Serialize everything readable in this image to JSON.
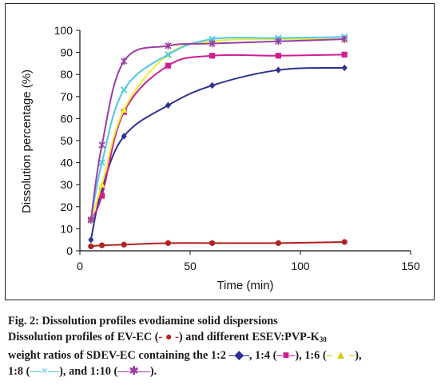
{
  "chart_data": {
    "type": "line",
    "xlabel": "Time (min)",
    "ylabel": "Dissolution percentage (%)",
    "xlim": [
      0,
      150
    ],
    "ylim": [
      0,
      100
    ],
    "xticks": [
      "0",
      "50",
      "100",
      "150"
    ],
    "yticks": [
      "0",
      "10",
      "20",
      "30",
      "40",
      "50",
      "60",
      "70",
      "80",
      "90",
      "100"
    ],
    "grid": false,
    "series": [
      {
        "key": "ev_ec",
        "color": "#b22222",
        "marker": "circle",
        "x": [
          5,
          10,
          20,
          40,
          60,
          90,
          120
        ],
        "y": [
          2,
          2.5,
          2.8,
          3.5,
          3.5,
          3.5,
          4
        ]
      },
      {
        "key": "r1_2",
        "color": "#2e3192",
        "marker": "diamond",
        "x": [
          5,
          10,
          20,
          40,
          60,
          90,
          120
        ],
        "y": [
          5,
          28,
          52,
          66,
          75,
          82,
          83
        ]
      },
      {
        "key": "r1_4",
        "color": "#d02090",
        "marker": "square",
        "x": [
          5,
          10,
          20,
          40,
          60,
          90,
          120
        ],
        "y": [
          14,
          25,
          63,
          84,
          88.5,
          88.5,
          89
        ]
      },
      {
        "key": "r1_6",
        "color": "#eeee33",
        "marker": "triangle",
        "x": [
          5,
          10,
          20,
          40,
          60,
          90,
          120
        ],
        "y": [
          14,
          30,
          64,
          89,
          95,
          96,
          96
        ]
      },
      {
        "key": "r1_8",
        "color": "#4cc9e8",
        "marker": "x",
        "x": [
          5,
          10,
          20,
          40,
          60,
          90,
          120
        ],
        "y": [
          14,
          40,
          73,
          89,
          96,
          96.5,
          97
        ]
      },
      {
        "key": "r1_10",
        "color": "#9b3fa3",
        "marker": "star",
        "x": [
          5,
          10,
          20,
          40,
          60,
          90,
          120
        ],
        "y": [
          14,
          48,
          86,
          93,
          94,
          95,
          96
        ]
      }
    ]
  },
  "caption": {
    "fig_label": "Fig. 2: Dissolution profiles evodiamine solid dispersions",
    "line2_a": "Dissolution profiles of EV-EC (",
    "leg_ev": "- ● -",
    "line2_b": ") and different ESEV:PVP-K",
    "line2_sub": "30",
    "line3_a": "weight ratios of SDEV-EC containing the 1:2 ",
    "leg_12": "–◆–",
    "line3_b": ", 1:4 (",
    "leg_14": "–■–",
    "line3_c": "), 1:6 (",
    "leg_16": "– ▲ –",
    "line3_d": "),",
    "line4_a": "1:8 (",
    "leg_18": "—×—",
    "line4_b": "), and 1:10  (",
    "leg_110": "—✱—",
    "line4_c": ")."
  }
}
